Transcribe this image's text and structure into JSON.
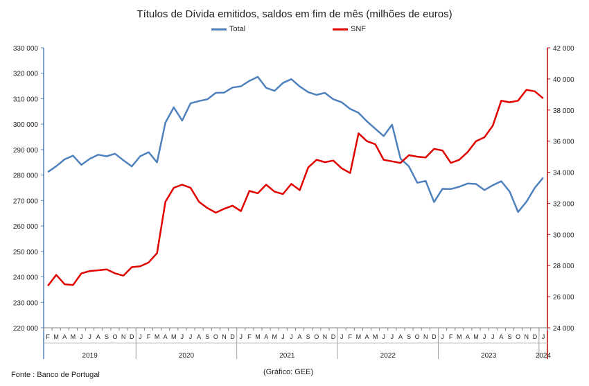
{
  "title": "Títulos de Dívida emitidos, saldos em fim de mês  (milhões de euros)",
  "source": "Fonte : Banco de Portugal",
  "credit": "(Gráfico: GEE)",
  "chart_data": {
    "type": "line",
    "title": "Títulos de Dívida emitidos, saldos em fim de mês  (milhões de euros)",
    "month_labels": [
      "F",
      "M",
      "A",
      "M",
      "J",
      "J",
      "A",
      "S",
      "O",
      "N",
      "D",
      "J",
      "F",
      "M",
      "A",
      "M",
      "J",
      "J",
      "A",
      "S",
      "O",
      "N",
      "D",
      "J",
      "F",
      "M",
      "A",
      "M",
      "J",
      "J",
      "A",
      "S",
      "O",
      "N",
      "D",
      "J",
      "F",
      "M",
      "A",
      "M",
      "J",
      "J",
      "A",
      "S",
      "O",
      "N",
      "D",
      "J",
      "F",
      "M",
      "A",
      "M",
      "J",
      "J",
      "A",
      "S",
      "O",
      "N",
      "D",
      "J"
    ],
    "x": [
      "2019-02",
      "2019-03",
      "2019-04",
      "2019-05",
      "2019-06",
      "2019-07",
      "2019-08",
      "2019-09",
      "2019-10",
      "2019-11",
      "2019-12",
      "2020-01",
      "2020-02",
      "2020-03",
      "2020-04",
      "2020-05",
      "2020-06",
      "2020-07",
      "2020-08",
      "2020-09",
      "2020-10",
      "2020-11",
      "2020-12",
      "2021-01",
      "2021-02",
      "2021-03",
      "2021-04",
      "2021-05",
      "2021-06",
      "2021-07",
      "2021-08",
      "2021-09",
      "2021-10",
      "2021-11",
      "2021-12",
      "2022-01",
      "2022-02",
      "2022-03",
      "2022-04",
      "2022-05",
      "2022-06",
      "2022-07",
      "2022-08",
      "2022-09",
      "2022-10",
      "2022-11",
      "2022-12",
      "2023-01",
      "2023-02",
      "2023-03",
      "2023-04",
      "2023-05",
      "2023-06",
      "2023-07",
      "2023-08",
      "2023-09",
      "2023-10",
      "2023-11",
      "2023-12",
      "2024-01"
    ],
    "years": [
      {
        "label": "2019",
        "start": 0,
        "end": 10
      },
      {
        "label": "2020",
        "start": 11,
        "end": 22
      },
      {
        "label": "2021",
        "start": 23,
        "end": 34
      },
      {
        "label": "2022",
        "start": 35,
        "end": 46
      },
      {
        "label": "2023",
        "start": 47,
        "end": 58
      },
      {
        "label": "2024",
        "start": 59,
        "end": 59
      }
    ],
    "y_left": {
      "min": 220000,
      "max": 330000,
      "step": 10000,
      "ticks": [
        "220 000",
        "230 000",
        "240 000",
        "250 000",
        "260 000",
        "270 000",
        "280 000",
        "290 000",
        "300 000",
        "310 000",
        "320 000",
        "330 000"
      ]
    },
    "y_right": {
      "min": 24000,
      "max": 42000,
      "step": 2000,
      "ticks": [
        "24 000",
        "26 000",
        "28 000",
        "30 000",
        "32 000",
        "34 000",
        "36 000",
        "38 000",
        "40 000",
        "42 000"
      ]
    },
    "legend_position": "top-center",
    "grid": false,
    "series": [
      {
        "name": "Total",
        "axis": "left",
        "color": "#4f81bd",
        "values": [
          281200,
          283500,
          286200,
          287600,
          284000,
          286400,
          288000,
          287400,
          288400,
          285800,
          283400,
          287400,
          289000,
          285000,
          300600,
          306600,
          301400,
          308200,
          309100,
          309800,
          312300,
          312400,
          314400,
          314900,
          317000,
          318600,
          314300,
          313100,
          316200,
          317700,
          314800,
          312600,
          311500,
          312300,
          309800,
          308600,
          306000,
          304500,
          301100,
          298200,
          295300,
          299800,
          286500,
          283400,
          277000,
          277700,
          269400,
          274600,
          274500,
          275400,
          276700,
          276500,
          274100,
          276000,
          277600,
          273500,
          265500,
          269500,
          275000,
          279000
        ]
      },
      {
        "name": "SNF",
        "axis": "right",
        "color": "#e00000",
        "values": [
          26700,
          27400,
          26800,
          26750,
          27500,
          27650,
          27700,
          27750,
          27500,
          27350,
          27900,
          27950,
          28200,
          28800,
          32100,
          33000,
          33200,
          33000,
          32100,
          31700,
          31400,
          31650,
          31850,
          31500,
          32800,
          32650,
          33200,
          32750,
          32600,
          33250,
          32850,
          34300,
          34800,
          34650,
          34750,
          34250,
          33950,
          36500,
          36000,
          35800,
          34800,
          34700,
          34600,
          35100,
          35000,
          34950,
          35500,
          35400,
          34600,
          34800,
          35300,
          36000,
          36250,
          37000,
          38600,
          38500,
          38600,
          39300,
          39200,
          38750
        ]
      }
    ]
  }
}
